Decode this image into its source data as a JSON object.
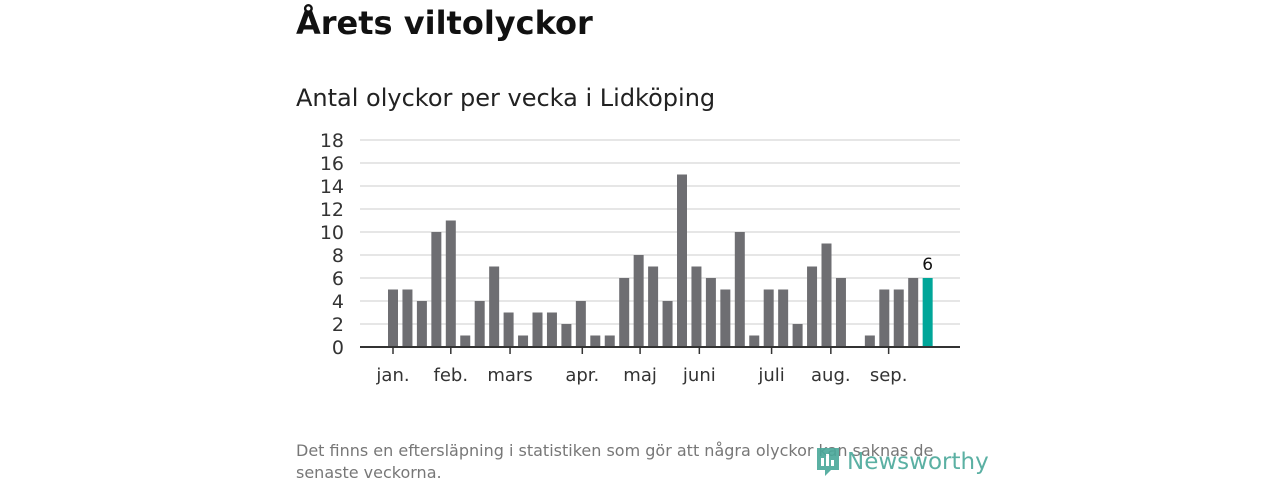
{
  "title": "Årets viltolyckor",
  "chart_data": {
    "type": "bar",
    "title": "Antal olyckor per vecka i Lidköping",
    "xlabel": "",
    "ylabel": "",
    "ylim": [
      0,
      18
    ],
    "yticks": [
      0,
      2,
      4,
      6,
      8,
      10,
      12,
      14,
      16,
      18
    ],
    "grid": true,
    "values": [
      5,
      5,
      4,
      10,
      11,
      1,
      4,
      7,
      3,
      1,
      3,
      3,
      2,
      4,
      1,
      1,
      6,
      8,
      7,
      4,
      15,
      7,
      6,
      5,
      10,
      1,
      5,
      5,
      2,
      7,
      9,
      6,
      0,
      1,
      5,
      5,
      6,
      6
    ],
    "highlight_index": 37,
    "highlight_label": "6",
    "month_ticks": [
      {
        "label": "jan.",
        "week_pos": 0
      },
      {
        "label": "feb.",
        "week_pos": 4
      },
      {
        "label": "mars",
        "week_pos": 8.1
      },
      {
        "label": "apr.",
        "week_pos": 13.1
      },
      {
        "label": "maj",
        "week_pos": 17.1
      },
      {
        "label": "juni",
        "week_pos": 21.2
      },
      {
        "label": "juli",
        "week_pos": 26.2
      },
      {
        "label": "aug.",
        "week_pos": 30.3
      },
      {
        "label": "sep.",
        "week_pos": 34.3
      }
    ],
    "colors": {
      "bar": "#6e6e72",
      "highlight": "#00a699",
      "grid": "#dddddd",
      "axis": "#333333"
    }
  },
  "footer": {
    "note": "Det finns en eftersläpning i statistiken som gör att några olyckor kan saknas de senaste veckorna.",
    "logo": "Newsworthy"
  }
}
